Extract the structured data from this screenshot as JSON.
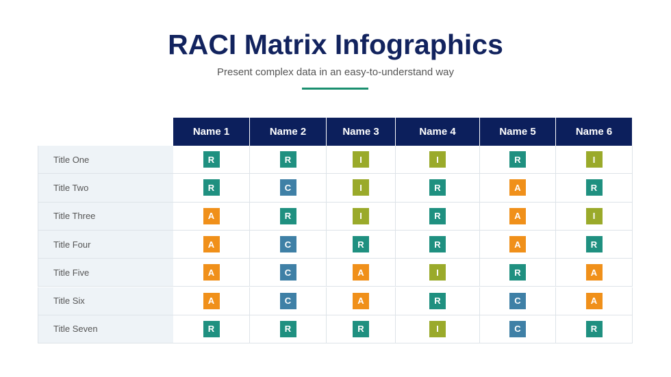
{
  "header": {
    "title": "RACI Matrix Infographics",
    "subtitle": "Present complex data in an easy-to-understand way"
  },
  "table": {
    "columns": [
      "Name 1",
      "Name 2",
      "Name 3",
      "Name 4",
      "Name 5",
      "Name 6"
    ],
    "rows": [
      {
        "title": "Title One",
        "cells": [
          "R",
          "R",
          "I",
          "I",
          "R",
          "I"
        ]
      },
      {
        "title": "Title Two",
        "cells": [
          "R",
          "C",
          "I",
          "R",
          "A",
          "R"
        ]
      },
      {
        "title": "Title Three",
        "cells": [
          "A",
          "R",
          "I",
          "R",
          "A",
          "I"
        ]
      },
      {
        "title": "Title Four",
        "cells": [
          "A",
          "C",
          "R",
          "R",
          "A",
          "R"
        ]
      },
      {
        "title": "Title Five",
        "cells": [
          "A",
          "C",
          "A",
          "I",
          "R",
          "A"
        ]
      },
      {
        "title": "Title Six",
        "cells": [
          "A",
          "C",
          "A",
          "R",
          "C",
          "A"
        ]
      },
      {
        "title": "Title Seven",
        "cells": [
          "R",
          "R",
          "R",
          "I",
          "C",
          "R"
        ]
      }
    ]
  }
}
